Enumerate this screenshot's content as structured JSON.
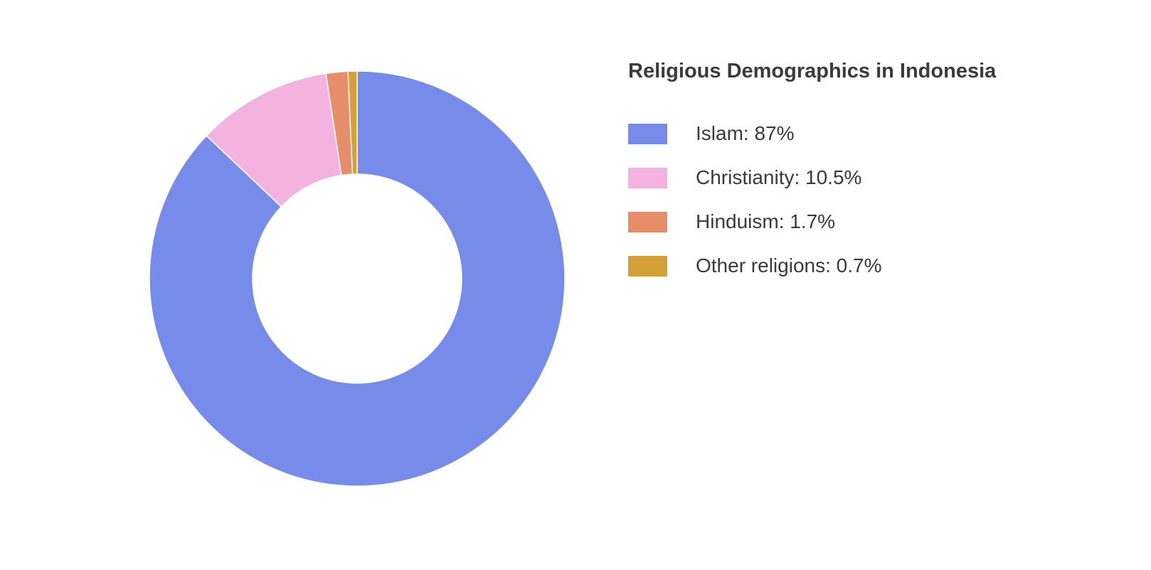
{
  "chart_data": {
    "type": "pie",
    "title": "Religious Demographics in Indonesia",
    "donut": true,
    "slices": [
      {
        "label": "Islam",
        "value": 87,
        "legend_text": "Islam: 87%",
        "color": "#778beb"
      },
      {
        "label": "Christianity",
        "value": 10.5,
        "legend_text": "Christianity: 10.5%",
        "color": "#f3b2e0"
      },
      {
        "label": "Hinduism",
        "value": 1.7,
        "legend_text": "Hinduism: 1.7%",
        "color": "#e68e6a"
      },
      {
        "label": "Other religions",
        "value": 0.7,
        "legend_text": "Other religions: 0.7%",
        "color": "#d4a037"
      }
    ],
    "legend_position": "right"
  }
}
